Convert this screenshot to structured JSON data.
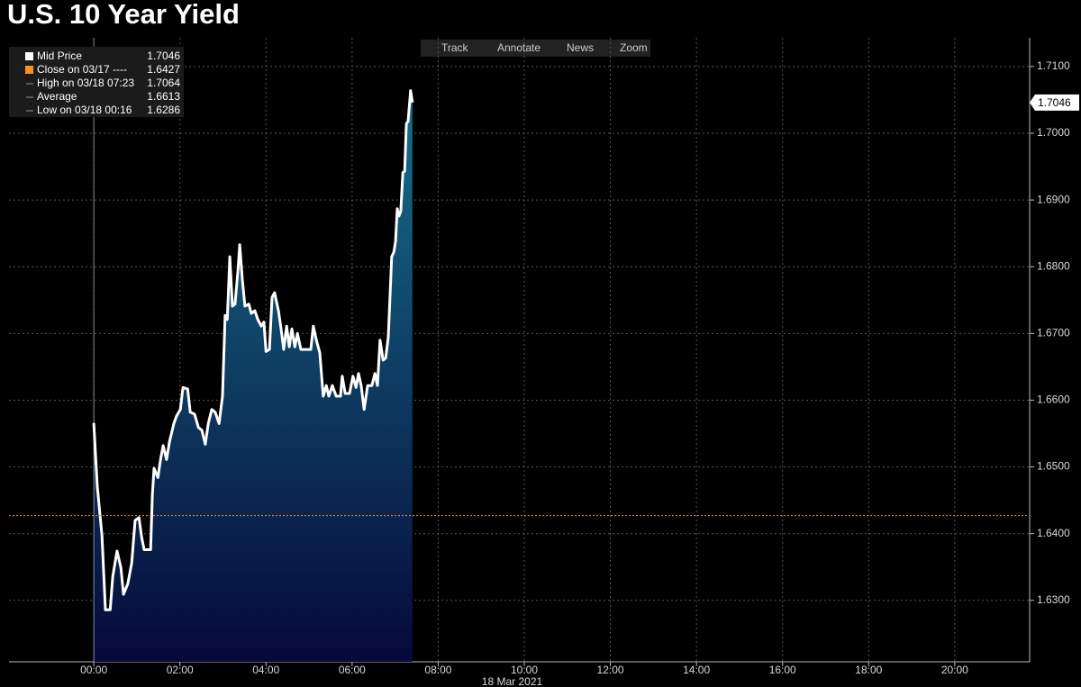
{
  "chart_data": {
    "type": "line",
    "title": "U.S. 10 Year Yield",
    "x_label": "18 Mar 2021",
    "x": [
      0,
      0.08,
      0.19,
      0.27,
      0.38,
      0.44,
      0.54,
      0.63,
      0.69,
      0.79,
      0.88,
      0.96,
      1.05,
      1.11,
      1.17,
      1.32,
      1.36,
      1.4,
      1.49,
      1.55,
      1.61,
      1.69,
      1.76,
      1.86,
      1.92,
      2.01,
      2.07,
      2.18,
      2.24,
      2.34,
      2.43,
      2.51,
      2.59,
      2.66,
      2.74,
      2.82,
      2.91,
      2.99,
      3.05,
      3.1,
      3.16,
      3.22,
      3.28,
      3.35,
      3.39,
      3.45,
      3.51,
      3.6,
      3.66,
      3.74,
      3.81,
      3.89,
      3.95,
      4.0,
      4.08,
      4.14,
      4.2,
      4.29,
      4.35,
      4.41,
      4.48,
      4.54,
      4.6,
      4.67,
      4.73,
      4.81,
      5.04,
      5.1,
      5.17,
      5.25,
      5.33,
      5.4,
      5.46,
      5.54,
      5.63,
      5.73,
      5.77,
      5.84,
      5.94,
      6.02,
      6.09,
      6.15,
      6.21,
      6.28,
      6.36,
      6.46,
      6.53,
      6.59,
      6.65,
      6.72,
      6.78,
      6.84,
      6.88,
      6.92,
      6.97,
      7.01,
      7.05,
      7.09,
      7.13,
      7.18,
      7.22,
      7.26,
      7.3,
      7.36,
      7.4
    ],
    "series": [
      {
        "name": "Mid Price",
        "color": "#ffffff",
        "values": [
          1.6566,
          1.6471,
          1.6397,
          1.6286,
          1.6286,
          1.6336,
          1.6374,
          1.6349,
          1.6309,
          1.6325,
          1.6356,
          1.642,
          1.6424,
          1.6395,
          1.6376,
          1.6376,
          1.6457,
          1.6498,
          1.6484,
          1.6511,
          1.6532,
          1.6511,
          1.6538,
          1.6565,
          1.6576,
          1.6586,
          1.6619,
          1.6617,
          1.6582,
          1.6579,
          1.6559,
          1.6555,
          1.6534,
          1.6565,
          1.6586,
          1.6582,
          1.6565,
          1.6606,
          1.6727,
          1.6721,
          1.6815,
          1.6741,
          1.6744,
          1.6795,
          1.6833,
          1.6781,
          1.6741,
          1.6744,
          1.673,
          1.6734,
          1.6721,
          1.6711,
          1.6717,
          1.6673,
          1.6676,
          1.6754,
          1.6761,
          1.6734,
          1.6707,
          1.6676,
          1.6711,
          1.668,
          1.6707,
          1.668,
          1.67,
          1.6676,
          1.6676,
          1.6711,
          1.669,
          1.6671,
          1.6606,
          1.6622,
          1.6606,
          1.6622,
          1.6606,
          1.6606,
          1.6636,
          1.661,
          1.661,
          1.6636,
          1.6619,
          1.664,
          1.6622,
          1.6586,
          1.6622,
          1.6622,
          1.664,
          1.6622,
          1.669,
          1.666,
          1.6663,
          1.6694,
          1.6754,
          1.6815,
          1.6822,
          1.6838,
          1.6887,
          1.6876,
          1.6883,
          1.6941,
          1.6943,
          1.7014,
          1.7018,
          1.7064,
          1.7046
        ]
      }
    ],
    "last_price": 1.7046,
    "stats": [
      {
        "label": "Close on 03/17 ----",
        "value": 1.6427,
        "color": "#f7931e"
      },
      {
        "label": "High on 03/18 07:23",
        "value": 1.7064
      },
      {
        "label": "Average",
        "value": 1.6613
      },
      {
        "label": "Low on 03/18 00:16",
        "value": 1.6286
      }
    ],
    "xlim": [
      -1.97,
      21.74
    ],
    "xticks": [
      {
        "value": 0,
        "label": "00:00"
      },
      {
        "value": 2,
        "label": "02:00"
      },
      {
        "value": 4,
        "label": "04:00"
      },
      {
        "value": 6,
        "label": "06:00"
      },
      {
        "value": 8,
        "label": "08:00"
      },
      {
        "value": 10,
        "label": "10:00"
      },
      {
        "value": 12,
        "label": "12:00"
      },
      {
        "value": 14,
        "label": "14:00"
      },
      {
        "value": 16,
        "label": "16:00"
      },
      {
        "value": 18,
        "label": "18:00"
      },
      {
        "value": 20,
        "label": "20:00"
      }
    ],
    "ylim": [
      1.6208,
      1.7143
    ],
    "yticks": [
      {
        "value": 1.63,
        "label": "1.6300"
      },
      {
        "value": 1.64,
        "label": "1.6400"
      },
      {
        "value": 1.65,
        "label": "1.6500"
      },
      {
        "value": 1.66,
        "label": "1.6600"
      },
      {
        "value": 1.67,
        "label": "1.6700"
      },
      {
        "value": 1.68,
        "label": "1.6800"
      },
      {
        "value": 1.69,
        "label": "1.6900"
      },
      {
        "value": 1.7,
        "label": "1.7000"
      },
      {
        "value": 1.71,
        "label": "1.7100"
      }
    ],
    "grid": true
  },
  "toolbar": [
    "Track",
    "Annotate",
    "News",
    "Zoom"
  ]
}
